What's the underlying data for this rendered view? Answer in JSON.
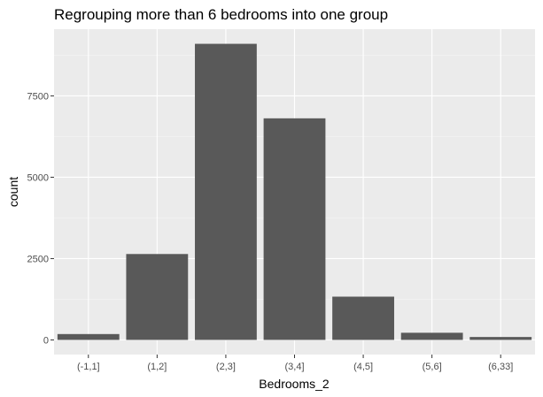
{
  "chart_data": {
    "type": "bar",
    "title": "Regrouping more than 6 bedrooms into one group",
    "xlabel": "Bedrooms_2",
    "ylabel": "count",
    "categories": [
      "(-1,1]",
      "(1,2]",
      "(2,3]",
      "(3,4]",
      "(4,5]",
      "(5,6]",
      "(6,33]"
    ],
    "values": [
      180,
      2640,
      9100,
      6810,
      1330,
      220,
      90
    ],
    "ylim": [
      -450,
      9550
    ],
    "yticks": [
      0,
      2500,
      5000,
      7500
    ],
    "ytick_labels": [
      "0",
      "2500",
      "5000",
      "7500"
    ],
    "grid": true,
    "colors": {
      "bar": "#595959",
      "panel": "#ebebeb",
      "grid_major": "#ffffff",
      "grid_minor": "#f5f5f5"
    }
  }
}
